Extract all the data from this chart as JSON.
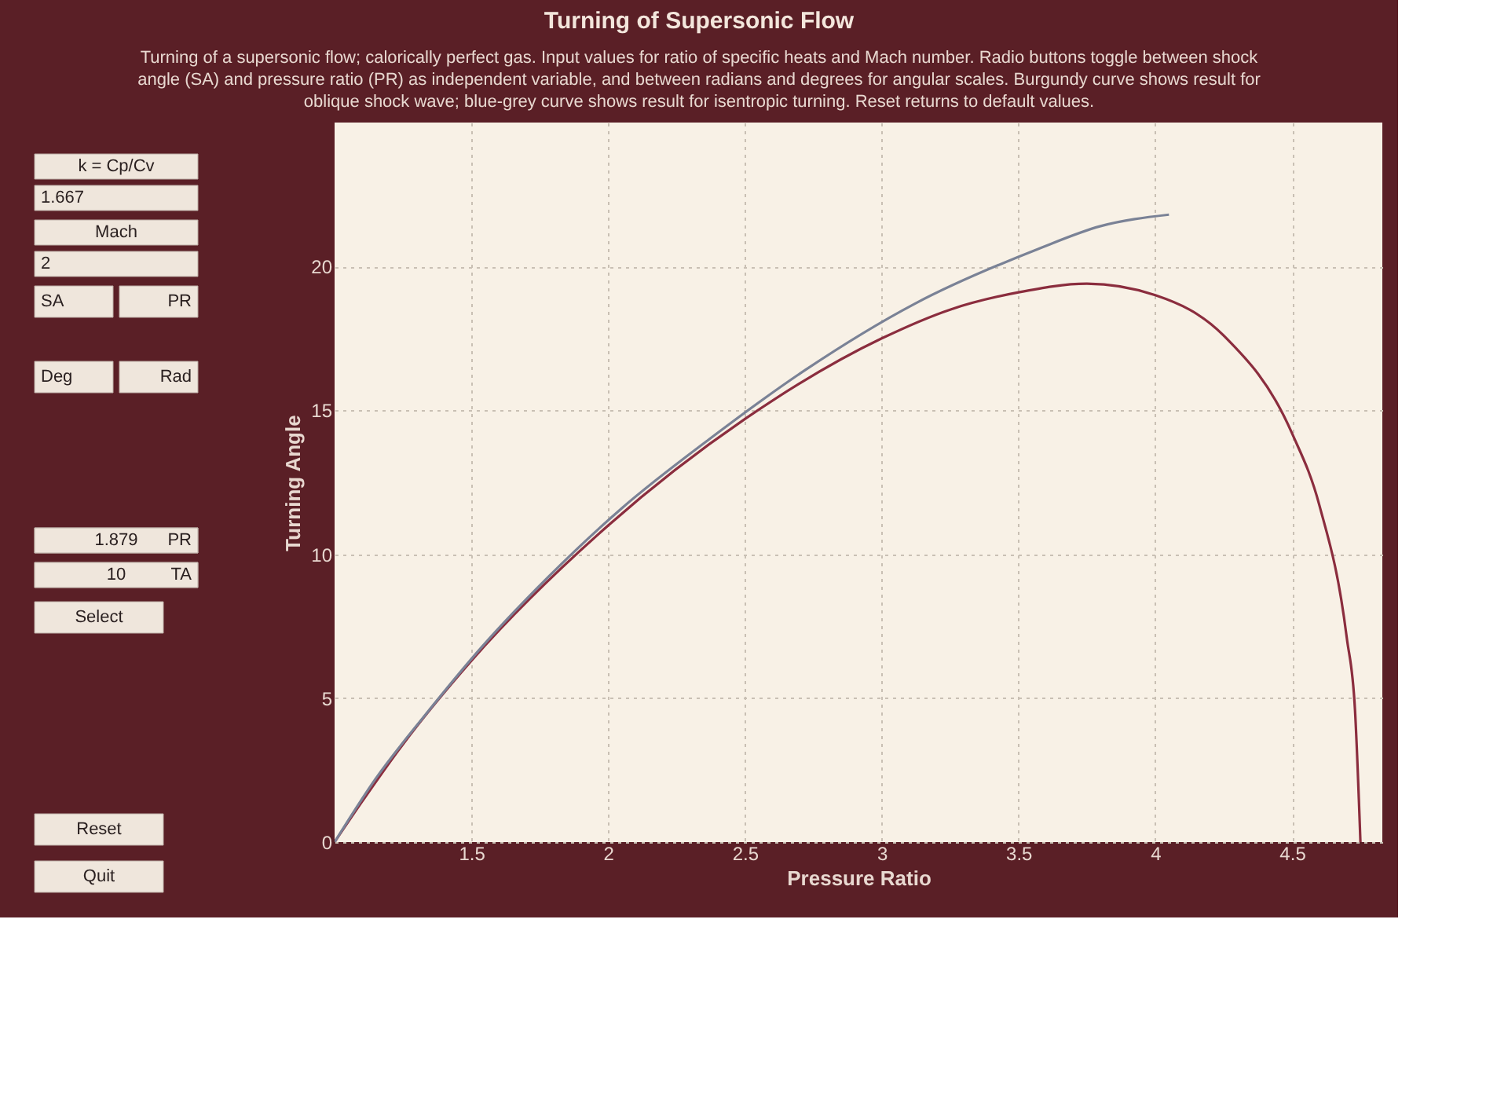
{
  "chart_data": {
    "type": "line",
    "title": "Turning of Supersonic Flow",
    "subtitle": "Turning of a supersonic flow;  calorically perfect gas.  Input values for ratio of specific heats and Mach number.  Radio buttons toggle between shock angle (SA) and pressure ratio (PR) as independent variable, and between radians and degrees for angular scales.  Burgundy curve shows result for oblique shock wave;  blue-grey curve shows result for isentropic turning.  Reset returns to default values.",
    "xlabel": "Pressure Ratio",
    "ylabel": "Turning Angle",
    "series": [
      {
        "color": "#8b2d3e",
        "x": [
          1,
          1.1,
          1.25,
          1.5,
          2,
          2.5,
          3,
          3.25,
          3.5,
          3.75,
          4,
          4.25,
          4.5,
          4.6,
          4.7,
          4.73,
          4.75
        ],
        "values": [
          0,
          1.4,
          3.4,
          6.3,
          11.0,
          14.7,
          17.5,
          18.5,
          19.1,
          19.4,
          19.0,
          17.6,
          14.2,
          11.7,
          7.1,
          4.6,
          0
        ]
      },
      {
        "color": "#7a8296",
        "x": [
          1,
          1.15,
          1.33,
          1.54,
          1.78,
          2.05,
          2.37,
          2.72,
          3.12,
          3.57,
          3.8,
          4.05
        ],
        "values": [
          0,
          2.2,
          4.4,
          6.8,
          9.2,
          11.6,
          14.0,
          16.4,
          18.7,
          20.6,
          21.4,
          21.8
        ]
      }
    ],
    "xlim": [
      1,
      4.83
    ],
    "ylim": [
      0,
      25
    ],
    "xticks": [
      1.5,
      2,
      2.5,
      3,
      3.5,
      4,
      4.5
    ],
    "yticks": [
      0,
      5,
      10,
      15,
      20
    ],
    "grid": true,
    "line_style": "solid",
    "marker": "none",
    "annotations": [
      "k = Cp/Cv",
      "1.667",
      "Mach",
      "2",
      "SA",
      "PR",
      "Deg",
      "Rad",
      "1.879",
      "PR",
      "10",
      "TA",
      "Select",
      "Reset",
      "Quit"
    ]
  }
}
